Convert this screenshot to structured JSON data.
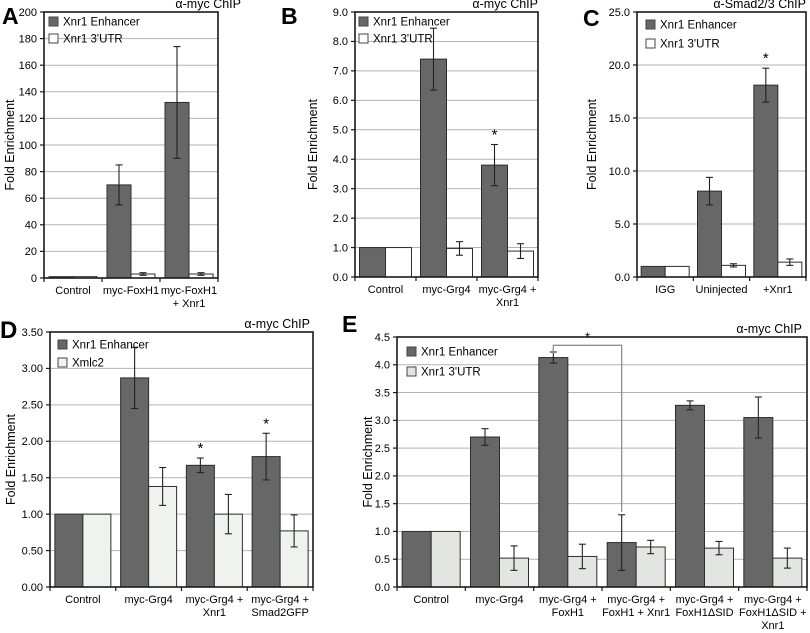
{
  "figure_name": "ChIP fold-enrichment bar charts",
  "colors": {
    "bar_dark": "#676767",
    "bar_white": "#ffffff",
    "bar_pale": "#f0f2ed",
    "bar_light": "#e2e5e2",
    "bar_border": "#2d2d2d",
    "grid": "#b3b3b3",
    "frame": "#1a1a1a",
    "error": "#222222",
    "bracket": "#8f8f8f"
  },
  "chart_data": [
    {
      "panel": "A",
      "type": "bar",
      "title": "α-myc ChIP",
      "ylabel": "Fold Enrichment",
      "ylim": [
        0,
        200
      ],
      "ystep": 20,
      "decimals": 0,
      "grid": true,
      "legend_position": "top-left",
      "categories": [
        [
          "Control"
        ],
        [
          "myc-FoxH1"
        ],
        [
          "myc-FoxH1",
          "+ Xnr1"
        ]
      ],
      "series": [
        {
          "name": "Xnr1 Enhancer",
          "color": "#676767",
          "values": [
            1,
            70,
            132
          ],
          "errors": [
            0,
            15,
            42
          ],
          "stars": [
            false,
            false,
            false
          ]
        },
        {
          "name": "Xnr1 3'UTR",
          "color": "#ffffff",
          "values": [
            1,
            3,
            3
          ],
          "errors": [
            0,
            1,
            1
          ],
          "stars": [
            false,
            false,
            false
          ]
        }
      ]
    },
    {
      "panel": "B",
      "type": "bar",
      "title": "α-myc ChIP",
      "ylabel": "Fold Enrichment",
      "ylim": [
        0,
        9
      ],
      "ystep": 1,
      "decimals": 1,
      "grid": true,
      "legend_position": "top-left",
      "categories": [
        [
          "Control"
        ],
        [
          "myc-Grg4"
        ],
        [
          "myc-Grg4 +",
          "Xnr1"
        ]
      ],
      "series": [
        {
          "name": "Xnr1 Enhancer",
          "color": "#676767",
          "values": [
            1.0,
            7.4,
            3.8
          ],
          "errors": [
            0,
            1.05,
            0.7
          ],
          "stars": [
            false,
            false,
            true
          ]
        },
        {
          "name": "Xnr1 3'UTR",
          "color": "#ffffff",
          "values": [
            1.0,
            0.97,
            0.88
          ],
          "errors": [
            0,
            0.23,
            0.25
          ],
          "stars": [
            false,
            false,
            false
          ]
        }
      ]
    },
    {
      "panel": "C",
      "type": "bar",
      "title": "α-Smad2/3 ChIP",
      "ylabel": "Fold Enrichment",
      "ylim": [
        0,
        25
      ],
      "ystep": 5,
      "decimals": 1,
      "grid": true,
      "legend_position": "top-left",
      "categories": [
        [
          "IGG"
        ],
        [
          "Uninjected"
        ],
        [
          "+Xnr1"
        ]
      ],
      "series": [
        {
          "name": "Xnr1 Enhancer",
          "color": "#676767",
          "values": [
            1.0,
            8.1,
            18.1
          ],
          "errors": [
            0,
            1.3,
            1.6
          ],
          "stars": [
            false,
            false,
            true
          ]
        },
        {
          "name": "Xnr1 3'UTR",
          "color": "#ffffff",
          "values": [
            1.0,
            1.1,
            1.4
          ],
          "errors": [
            0,
            0.15,
            0.3
          ],
          "stars": [
            false,
            false,
            false
          ]
        }
      ]
    },
    {
      "panel": "D",
      "type": "bar",
      "title": "α-myc ChIP",
      "ylabel": "Fold Enrichment",
      "ylim": [
        0,
        3.5
      ],
      "ystep": 0.5,
      "decimals": 2,
      "grid": true,
      "legend_position": "top-left",
      "categories": [
        [
          "Control"
        ],
        [
          "myc-Grg4"
        ],
        [
          "myc-Grg4 +",
          "Xnr1"
        ],
        [
          "myc-Grg4 +",
          "Smad2GFP"
        ]
      ],
      "series": [
        {
          "name": "Xnr1 Enhancer",
          "color": "#676767",
          "values": [
            1.0,
            2.87,
            1.67,
            1.79
          ],
          "errors": [
            0,
            0.42,
            0.1,
            0.32
          ],
          "stars": [
            false,
            false,
            true,
            true
          ]
        },
        {
          "name": "Xmlc2",
          "color": "#f0f2ed",
          "values": [
            1.0,
            1.38,
            1.0,
            0.77
          ],
          "errors": [
            0,
            0.26,
            0.27,
            0.22
          ],
          "stars": [
            false,
            false,
            false,
            false
          ]
        }
      ]
    },
    {
      "panel": "E",
      "type": "bar",
      "title": "α-myc ChIP",
      "ylabel": "Fold Enrichment",
      "ylim": [
        0,
        4.5
      ],
      "ystep": 0.5,
      "decimals": 1,
      "grid": true,
      "legend_position": "top-left",
      "categories": [
        [
          "Control"
        ],
        [
          "myc-Grg4"
        ],
        [
          "myc-Grg4 +",
          "FoxH1"
        ],
        [
          "myc-Grg4 +",
          "FoxH1 + Xnr1"
        ],
        [
          "myc-Grg4 +",
          "FoxH1ΔSID"
        ],
        [
          "myc-Grg4 +",
          "FoxH1ΔSID +",
          "Xnr1"
        ]
      ],
      "series": [
        {
          "name": "Xnr1 Enhancer",
          "color": "#676767",
          "values": [
            1.0,
            2.7,
            4.13,
            0.8,
            3.27,
            3.05
          ],
          "errors": [
            0,
            0.15,
            0.1,
            0.5,
            0.08,
            0.37
          ],
          "stars": [
            false,
            false,
            false,
            false,
            false,
            false
          ]
        },
        {
          "name": "Xnr1 3'UTR",
          "color": "#e2e5e2",
          "values": [
            1.0,
            0.52,
            0.55,
            0.72,
            0.7,
            0.52
          ],
          "errors": [
            0,
            0.22,
            0.22,
            0.12,
            0.12,
            0.18
          ],
          "stars": [
            false,
            false,
            false,
            false,
            false,
            false
          ]
        }
      ],
      "bracket": {
        "series": 0,
        "from_category": 2,
        "to_category": 3,
        "y": 4.35,
        "drop_to": 1.35,
        "label": "*"
      }
    }
  ]
}
